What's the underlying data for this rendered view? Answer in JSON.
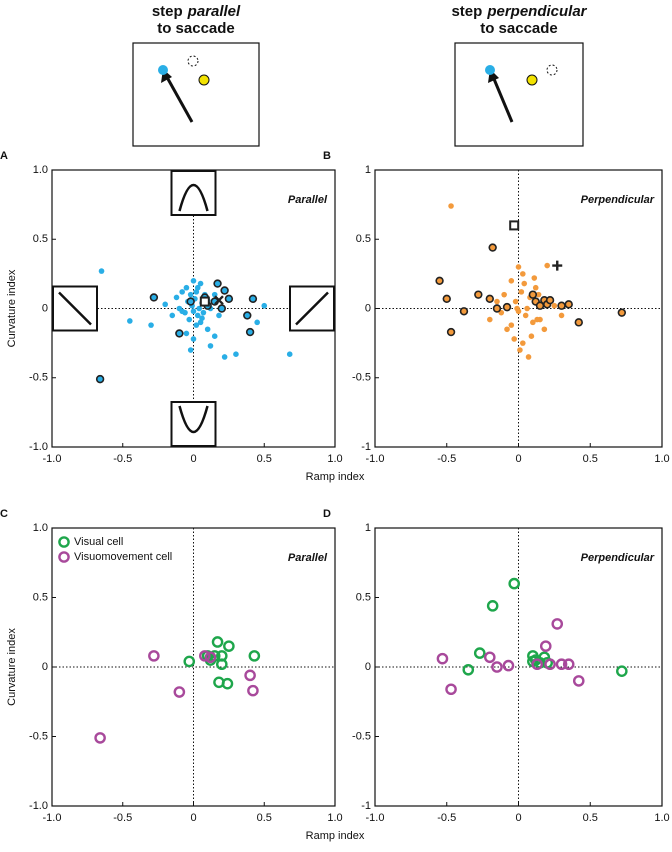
{
  "headers": [
    {
      "line1": [
        "step",
        "parallel"
      ],
      "line2": "to saccade"
    },
    {
      "line1": [
        "step",
        "perpendicular"
      ],
      "line2": "to saccade"
    }
  ],
  "chart_data": [
    {
      "type": "scatter",
      "panel_label": "A",
      "title": "Parallel",
      "xlabel": "Ramp index",
      "ylabel": "Curvature index",
      "xlim": [
        -1,
        1
      ],
      "ylim": [
        -1,
        1
      ],
      "xticks": [
        {
          "value": -1,
          "label": "-1.0"
        },
        -0.5,
        0,
        0.5,
        {
          "value": 1,
          "label": "1.0"
        }
      ],
      "yticks": [
        {
          "value": -1,
          "label": "-1.0"
        },
        -0.5,
        0,
        0.5,
        {
          "value": 1,
          "label": "1.0"
        }
      ],
      "zero_lines": true,
      "schematic_icons": true,
      "series": [
        {
          "marker": "dot",
          "color": "#29aee6",
          "x": [
            -0.65,
            -0.45,
            -0.3,
            -0.2,
            -0.15,
            -0.12,
            -0.1,
            -0.08,
            -0.06,
            -0.05,
            -0.04,
            -0.03,
            -0.02,
            -0.01,
            0,
            0,
            0.01,
            0.02,
            0.02,
            0.03,
            0.04,
            0.05,
            0.05,
            0.06,
            0.07,
            0.08,
            0.1,
            0.12,
            0.12,
            0.15,
            0.15,
            0.18,
            0.22,
            0.3,
            0.42,
            0.45,
            0.5,
            0.68,
            -0.05,
            0.0,
            0.03,
            -0.08,
            0.06,
            0.1,
            -0.02
          ],
          "values": [
            0.27,
            -0.09,
            -0.12,
            0.03,
            -0.05,
            0.08,
            0.0,
            0.12,
            -0.03,
            0.15,
            0.05,
            -0.08,
            0.1,
            0.02,
            0.2,
            -0.02,
            0.07,
            -0.12,
            0.12,
            -0.05,
            0.0,
            0.18,
            -0.1,
            0.04,
            -0.03,
            0.1,
            -0.15,
            -0.27,
            0.0,
            -0.2,
            0.1,
            -0.05,
            -0.35,
            -0.33,
            0.07,
            -0.1,
            0.02,
            -0.33,
            -0.18,
            -0.22,
            0.15,
            -0.02,
            -0.07,
            0.06,
            -0.3
          ]
        },
        {
          "marker": "ring-dot",
          "color": "#29aee6",
          "x": [
            -0.66,
            -0.28,
            -0.1,
            -0.02,
            0.08,
            0.1,
            0.15,
            0.17,
            0.2,
            0.22,
            0.25,
            0.38,
            0.4,
            0.42
          ],
          "values": [
            -0.51,
            0.08,
            -0.18,
            0.05,
            0.08,
            0.02,
            0.05,
            0.18,
            0.0,
            0.13,
            0.07,
            -0.05,
            -0.17,
            0.07
          ]
        },
        {
          "marker": "square",
          "color": "#222222",
          "x": [
            0.08
          ],
          "values": [
            0.05
          ]
        },
        {
          "marker": "cross",
          "color": "#222222",
          "x": [
            0.18
          ],
          "values": [
            0.06
          ]
        }
      ]
    },
    {
      "type": "scatter",
      "panel_label": "B",
      "title": "Perpendicular",
      "xlim": [
        -1,
        1
      ],
      "ylim": [
        -1,
        1
      ],
      "xticks": [
        {
          "value": -1,
          "label": "-1.0"
        },
        -0.5,
        0,
        0.5,
        {
          "value": 1,
          "label": "1.0"
        }
      ],
      "yticks": [
        -1,
        -0.5,
        0,
        0.5,
        1
      ],
      "zero_lines": true,
      "series": [
        {
          "marker": "dot",
          "color": "#f39a3c",
          "x": [
            -0.47,
            0.2,
            -0.1,
            -0.05,
            -0.02,
            0,
            0.02,
            0.05,
            0.08,
            0.1,
            0.12,
            -0.12,
            -0.08,
            0.03,
            0.06,
            0.15,
            -0.15,
            -0.03,
            0.01,
            0.04,
            0.09,
            0.14,
            0.18,
            0.25,
            -0.2,
            0.0,
            0.07,
            -0.05,
            0.11,
            0.3,
            -0.01,
            0.03,
            0.13
          ],
          "values": [
            0.74,
            0.31,
            0.1,
            0.2,
            0.05,
            -0.02,
            0.12,
            -0.05,
            0.08,
            -0.1,
            0.15,
            -0.03,
            -0.15,
            0.25,
            0.0,
            -0.08,
            0.05,
            -0.22,
            -0.3,
            0.18,
            -0.2,
            0.1,
            -0.15,
            0.02,
            -0.08,
            0.3,
            -0.35,
            -0.12,
            0.22,
            -0.05,
            0.0,
            -0.25,
            -0.08
          ]
        },
        {
          "marker": "ring-dot",
          "color": "#f39a3c",
          "x": [
            -0.55,
            -0.5,
            -0.47,
            -0.38,
            -0.28,
            -0.18,
            -0.2,
            -0.15,
            -0.08,
            0.1,
            0.12,
            0.15,
            0.18,
            0.2,
            0.22,
            0.3,
            0.35,
            0.42,
            0.72
          ],
          "values": [
            0.2,
            0.07,
            -0.17,
            -0.02,
            0.1,
            0.44,
            0.07,
            0.0,
            0.01,
            0.1,
            0.05,
            0.02,
            0.06,
            0.03,
            0.06,
            0.02,
            0.03,
            -0.1,
            -0.03
          ]
        },
        {
          "marker": "square",
          "color": "#222222",
          "x": [
            -0.03
          ],
          "values": [
            0.6
          ]
        },
        {
          "marker": "plus",
          "color": "#222222",
          "x": [
            0.27
          ],
          "values": [
            0.31
          ]
        }
      ]
    },
    {
      "type": "scatter",
      "panel_label": "C",
      "title": "Parallel",
      "xlabel": "Ramp index",
      "ylabel": "Curvature index",
      "xlim": [
        -1,
        1
      ],
      "ylim": [
        -1,
        1
      ],
      "xticks": [
        {
          "value": -1,
          "label": "-1.0"
        },
        -0.5,
        0,
        0.5,
        {
          "value": 1,
          "label": "1.0"
        }
      ],
      "yticks": [
        {
          "value": -1,
          "label": "-1.0"
        },
        -0.5,
        0,
        0.5,
        {
          "value": 1,
          "label": "1.0"
        }
      ],
      "zero_lines": true,
      "legend": "upper left",
      "series": [
        {
          "name": "Visual cell",
          "marker": "ring",
          "color": "#1ea64b",
          "x": [
            -0.03,
            0.1,
            0.12,
            0.15,
            0.17,
            0.2,
            0.2,
            0.18,
            0.24,
            0.25,
            0.43
          ],
          "values": [
            0.04,
            0.08,
            0.05,
            0.08,
            0.18,
            0.08,
            0.02,
            -0.11,
            -0.12,
            0.15,
            0.08
          ]
        },
        {
          "name": "Visuomovement cell",
          "marker": "ring",
          "color": "#a8499b",
          "x": [
            -0.66,
            -0.28,
            -0.1,
            0.08,
            0.12,
            0.4,
            0.42
          ],
          "values": [
            -0.51,
            0.08,
            -0.18,
            0.08,
            0.07,
            -0.06,
            -0.17
          ]
        }
      ]
    },
    {
      "type": "scatter",
      "panel_label": "D",
      "title": "Perpendicular",
      "xlim": [
        -1,
        1
      ],
      "ylim": [
        -1,
        1
      ],
      "xticks": [
        {
          "value": -1,
          "label": "-1.0"
        },
        -0.5,
        0,
        0.5,
        {
          "value": 1,
          "label": "1.0"
        }
      ],
      "yticks": [
        -1,
        -0.5,
        0,
        0.5,
        1
      ],
      "zero_lines": true,
      "series": [
        {
          "marker": "ring",
          "color": "#1ea64b",
          "x": [
            -0.03,
            -0.18,
            -0.27,
            -0.35,
            0.1,
            0.12,
            0.15,
            0.18,
            0.2,
            0.72,
            0.1
          ],
          "values": [
            0.6,
            0.44,
            0.1,
            -0.02,
            0.08,
            0.05,
            0.03,
            0.07,
            0.03,
            -0.03,
            0.04
          ]
        },
        {
          "marker": "ring",
          "color": "#a8499b",
          "x": [
            -0.53,
            -0.47,
            -0.2,
            -0.15,
            -0.07,
            0.19,
            0.27,
            0.22,
            0.3,
            0.35,
            0.42,
            0.13
          ],
          "values": [
            0.06,
            -0.16,
            0.07,
            0.0,
            0.01,
            0.15,
            0.31,
            0.02,
            0.02,
            0.02,
            -0.1,
            0.02
          ]
        }
      ]
    }
  ]
}
